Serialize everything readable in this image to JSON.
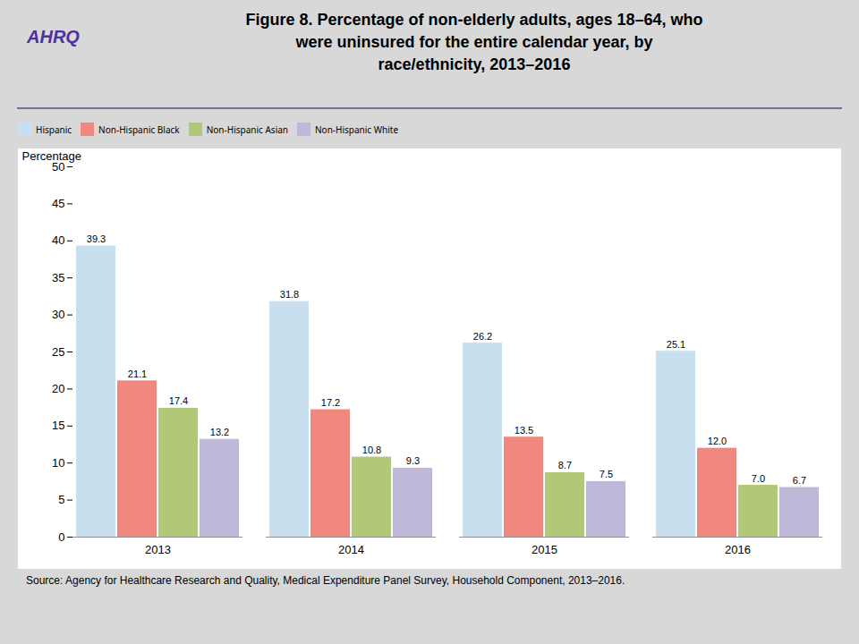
{
  "chart_data": {
    "type": "bar",
    "title": "Figure 8. Percentage of non-elderly adults, ages 18–64, who\nwere uninsured for the entire calendar year, by\nrace/ethnicity, 2013–2016",
    "source": "Source: Agency for Healthcare Research and Quality, Medical Expenditure Panel Survey, Household Component, 2013–2016.",
    "annotations": [
      "AHRQ"
    ],
    "ylabel": "Percentage",
    "categories": [
      "2013",
      "2014",
      "2015",
      "2016"
    ],
    "series": [
      {
        "name": "Hispanic",
        "color": "#c8dff0",
        "values": [
          39.3,
          31.8,
          26.2,
          25.1
        ],
        "value_labels": [
          "39.3",
          "31.8",
          "26.2",
          "25.1"
        ]
      },
      {
        "name": "Non-Hispanic Black",
        "color": "#f08880",
        "values": [
          21.1,
          17.2,
          13.5,
          12.0
        ],
        "value_labels": [
          "21.1",
          "17.2",
          "13.5",
          "12.0"
        ]
      },
      {
        "name": "Non-Hispanic Asian",
        "color": "#b0c878",
        "values": [
          17.4,
          10.8,
          8.7,
          7.0
        ],
        "value_labels": [
          "17.4",
          "10.8",
          "8.7",
          "7.0"
        ]
      },
      {
        "name": "Non-Hispanic White",
        "color": "#c0b8d8",
        "values": [
          13.2,
          9.3,
          7.5,
          6.7
        ],
        "value_labels": [
          "13.2",
          "9.3",
          "7.5",
          "6.7"
        ]
      }
    ],
    "ylim": [
      0,
      50
    ],
    "yticks": [
      0,
      5,
      10,
      15,
      20,
      25,
      30,
      35,
      40,
      45,
      50
    ],
    "grid": false,
    "legend": "top",
    "data_labels": true
  }
}
